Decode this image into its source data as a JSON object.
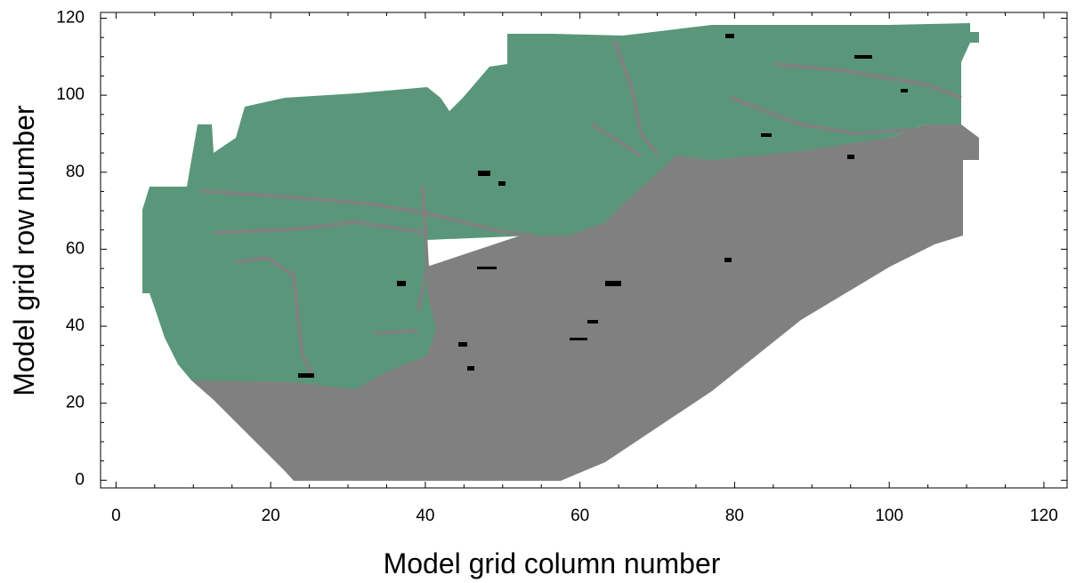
{
  "chart_data": {
    "type": "raster",
    "x_label": "Model grid column number",
    "y_label": "Model grid row number",
    "xlim": [
      -2,
      123
    ],
    "ylim": [
      -2,
      121.5
    ],
    "xticks": [
      0,
      20,
      40,
      60,
      80,
      100,
      120
    ],
    "yticks": [
      0,
      20,
      40,
      60,
      80,
      100,
      120
    ],
    "minor_divisions": 4
  }
}
